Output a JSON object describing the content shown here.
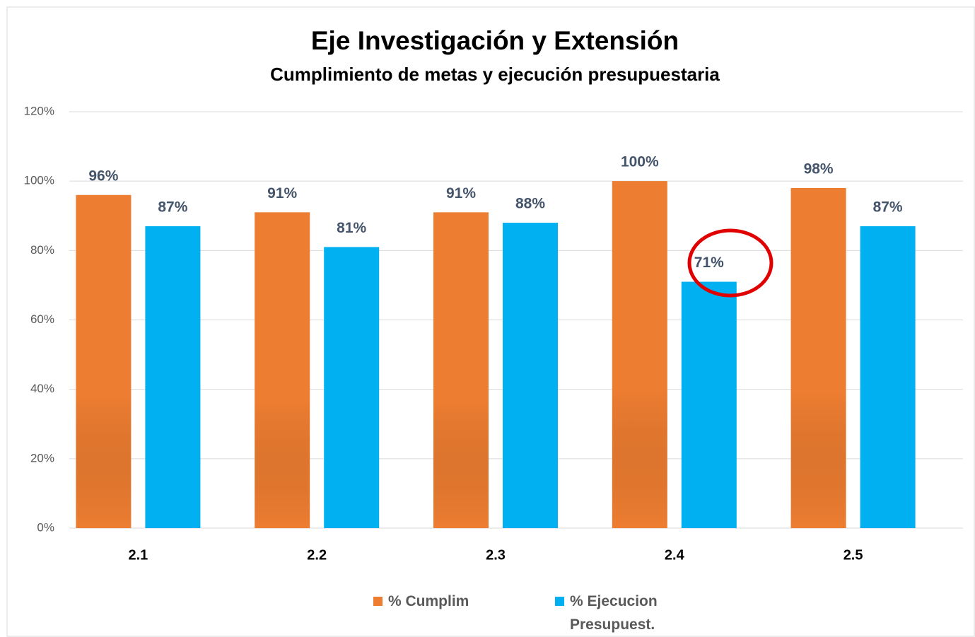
{
  "chart_data": {
    "type": "bar",
    "title": "Eje Investigación y Extensión",
    "subtitle": "Cumplimiento de metas y ejecución presupuestaria",
    "categories": [
      "2.1",
      "2.2",
      "2.3",
      "2.4",
      "2.5"
    ],
    "series": [
      {
        "name": "% Cumplim",
        "color": "#ed7d31",
        "values": [
          96,
          91,
          91,
          100,
          98
        ],
        "value_labels": [
          "96%",
          "91%",
          "91%",
          "100%",
          "98%"
        ]
      },
      {
        "name": "% Ejecucion Presupuest.",
        "color": "#00b0f0",
        "values": [
          87,
          81,
          88,
          71,
          87
        ],
        "value_labels": [
          "87%",
          "81%",
          "88%",
          "71%",
          "87%"
        ]
      }
    ],
    "ylim": [
      0,
      120
    ],
    "yticks": [
      {
        "value": 0,
        "label": "0%"
      },
      {
        "value": 20,
        "label": "20%"
      },
      {
        "value": 40,
        "label": "40%"
      },
      {
        "value": 60,
        "label": "60%"
      },
      {
        "value": 80,
        "label": "80%"
      },
      {
        "value": 100,
        "label": "100%"
      },
      {
        "value": 120,
        "label": "120%"
      }
    ],
    "grid": true,
    "legend": "bottom"
  }
}
